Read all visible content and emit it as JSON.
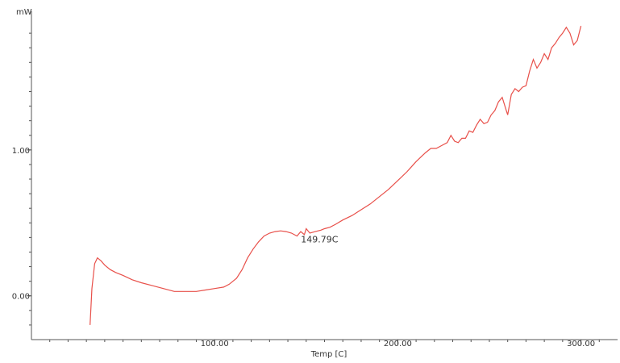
{
  "chart_data": {
    "type": "line",
    "xlabel": "Temp [C]",
    "ylabel": "mW",
    "xlim": [
      0,
      320
    ],
    "ylim": [
      -0.3,
      1.95
    ],
    "x_ticks": [
      {
        "value": 100,
        "label": "100.00"
      },
      {
        "value": 200,
        "label": "200.00"
      },
      {
        "value": 300,
        "label": "300.00"
      }
    ],
    "y_ticks": [
      {
        "value": 0,
        "label": "0.00"
      },
      {
        "value": 1,
        "label": "1.00"
      }
    ],
    "grid": false,
    "annotations": [
      {
        "text": "149.79C",
        "x": 149.79,
        "y": 0.4
      }
    ],
    "series": [
      {
        "color": "#e8504a",
        "x": [
          32,
          33,
          34.5,
          36,
          38,
          40,
          43,
          46,
          50,
          55,
          60,
          66,
          72,
          78,
          84,
          90,
          95,
          100,
          105,
          108,
          112,
          115,
          118,
          121,
          124,
          127,
          130,
          133,
          136,
          139,
          142,
          145,
          147,
          149,
          150,
          152,
          155,
          158,
          160,
          163,
          166,
          170,
          175,
          180,
          185,
          190,
          195,
          200,
          205,
          210,
          215,
          218,
          221,
          224,
          227,
          229,
          231,
          233,
          235,
          237,
          239,
          241,
          243,
          245,
          247,
          249,
          251,
          253,
          255,
          257,
          259,
          260,
          262,
          264,
          266,
          268,
          270,
          272,
          274,
          276,
          278,
          280,
          282,
          284,
          286,
          288,
          290,
          292,
          294,
          296,
          298,
          300
        ],
        "y": [
          -0.2,
          0.05,
          0.22,
          0.26,
          0.24,
          0.21,
          0.18,
          0.16,
          0.14,
          0.11,
          0.09,
          0.07,
          0.05,
          0.03,
          0.03,
          0.03,
          0.04,
          0.05,
          0.06,
          0.08,
          0.12,
          0.18,
          0.26,
          0.32,
          0.37,
          0.41,
          0.43,
          0.44,
          0.445,
          0.44,
          0.43,
          0.41,
          0.44,
          0.42,
          0.46,
          0.43,
          0.44,
          0.45,
          0.46,
          0.47,
          0.49,
          0.52,
          0.55,
          0.59,
          0.63,
          0.68,
          0.73,
          0.79,
          0.85,
          0.92,
          0.98,
          1.01,
          1.01,
          1.03,
          1.05,
          1.1,
          1.06,
          1.05,
          1.08,
          1.08,
          1.13,
          1.12,
          1.17,
          1.21,
          1.18,
          1.19,
          1.24,
          1.27,
          1.33,
          1.36,
          1.28,
          1.24,
          1.38,
          1.42,
          1.4,
          1.43,
          1.44,
          1.54,
          1.62,
          1.56,
          1.6,
          1.66,
          1.62,
          1.7,
          1.73,
          1.77,
          1.8,
          1.84,
          1.8,
          1.72,
          1.75,
          1.85
        ]
      }
    ]
  }
}
